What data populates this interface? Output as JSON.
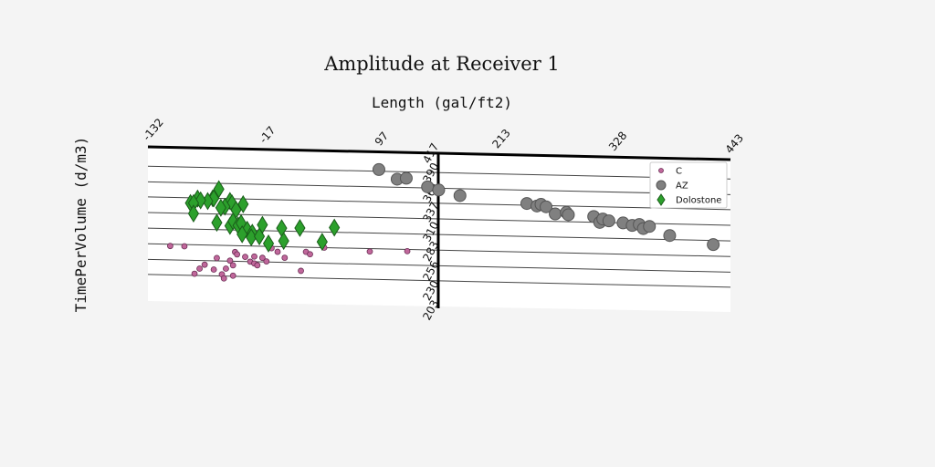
{
  "chart_data": {
    "type": "scatter",
    "title": "Amplitude at Receiver 1",
    "xlabel": "Length (gal/ft2)",
    "ylabel": "TimePerVolume (d/m3)",
    "x_ticks": [
      "-132",
      "-17",
      "97",
      "213",
      "328",
      "443"
    ],
    "y_ticks": [
      "203",
      "230",
      "256",
      "283",
      "310",
      "337",
      "364",
      "390",
      "417"
    ],
    "xlim": [
      -132,
      443
    ],
    "ylim": [
      203,
      430
    ],
    "grid": "horizontal",
    "legend_position": "top-right",
    "series": [
      {
        "name": "C",
        "marker": "circle-small",
        "color": "#c0679b",
        "points": [
          [
            -110,
            280
          ],
          [
            -96,
            280
          ],
          [
            -81,
            242
          ],
          [
            -86,
            233
          ],
          [
            -76,
            249
          ],
          [
            -64,
            261
          ],
          [
            -67,
            241
          ],
          [
            -59,
            233
          ],
          [
            -55,
            243
          ],
          [
            -51,
            257
          ],
          [
            -48,
            249
          ],
          [
            -46,
            272
          ],
          [
            -44,
            268
          ],
          [
            -36,
            264
          ],
          [
            -31,
            256
          ],
          [
            -27,
            265
          ],
          [
            -27,
            253
          ],
          [
            -24,
            250
          ],
          [
            -19,
            263
          ],
          [
            -15,
            257
          ],
          [
            -10,
            280
          ],
          [
            -4,
            274
          ],
          [
            3,
            264
          ],
          [
            19,
            242
          ],
          [
            24,
            275
          ],
          [
            28,
            271
          ],
          [
            42,
            283
          ],
          [
            87,
            278
          ],
          [
            124,
            280
          ],
          [
            -57,
            226
          ],
          [
            -48,
            231
          ]
        ]
      },
      {
        "name": "AZ",
        "marker": "circle-large",
        "color": "#808080",
        "points": [
          [
            96,
            420
          ],
          [
            114,
            404
          ],
          [
            123,
            406
          ],
          [
            144,
            392
          ],
          [
            155,
            387
          ],
          [
            176,
            378
          ],
          [
            242,
            367
          ],
          [
            252,
            363
          ],
          [
            256,
            366
          ],
          [
            261,
            362
          ],
          [
            270,
            350
          ],
          [
            281,
            353
          ],
          [
            283,
            349
          ],
          [
            308,
            347
          ],
          [
            314,
            337
          ],
          [
            317,
            343
          ],
          [
            323,
            340
          ],
          [
            337,
            337
          ],
          [
            346,
            333
          ],
          [
            353,
            335
          ],
          [
            357,
            328
          ],
          [
            363,
            332
          ],
          [
            383,
            317
          ],
          [
            426,
            303
          ]
        ]
      },
      {
        "name": "Dolostone",
        "marker": "diamond",
        "color": "#2ca02c",
        "points": [
          [
            -62,
            380
          ],
          [
            -68,
            364
          ],
          [
            -67,
            364
          ],
          [
            -73,
            359
          ],
          [
            -83,
            363
          ],
          [
            -80,
            360
          ],
          [
            -90,
            355
          ],
          [
            -87,
            355
          ],
          [
            -51,
            360
          ],
          [
            -49,
            356
          ],
          [
            -56,
            350
          ],
          [
            -60,
            348
          ],
          [
            -87,
            337
          ],
          [
            -64,
            322
          ],
          [
            -51,
            317
          ],
          [
            -48,
            325
          ],
          [
            -43,
            318
          ],
          [
            -40,
            322
          ],
          [
            -34,
            311
          ],
          [
            -29,
            306
          ],
          [
            -39,
            303
          ],
          [
            -30,
            298
          ],
          [
            -38,
            355
          ],
          [
            -45,
            345
          ],
          [
            -22,
            300
          ],
          [
            -19,
            320
          ],
          [
            -13,
            288
          ],
          [
            0,
            315
          ],
          [
            2,
            293
          ],
          [
            18,
            316
          ],
          [
            40,
            293
          ],
          [
            52,
            318
          ]
        ]
      }
    ]
  }
}
